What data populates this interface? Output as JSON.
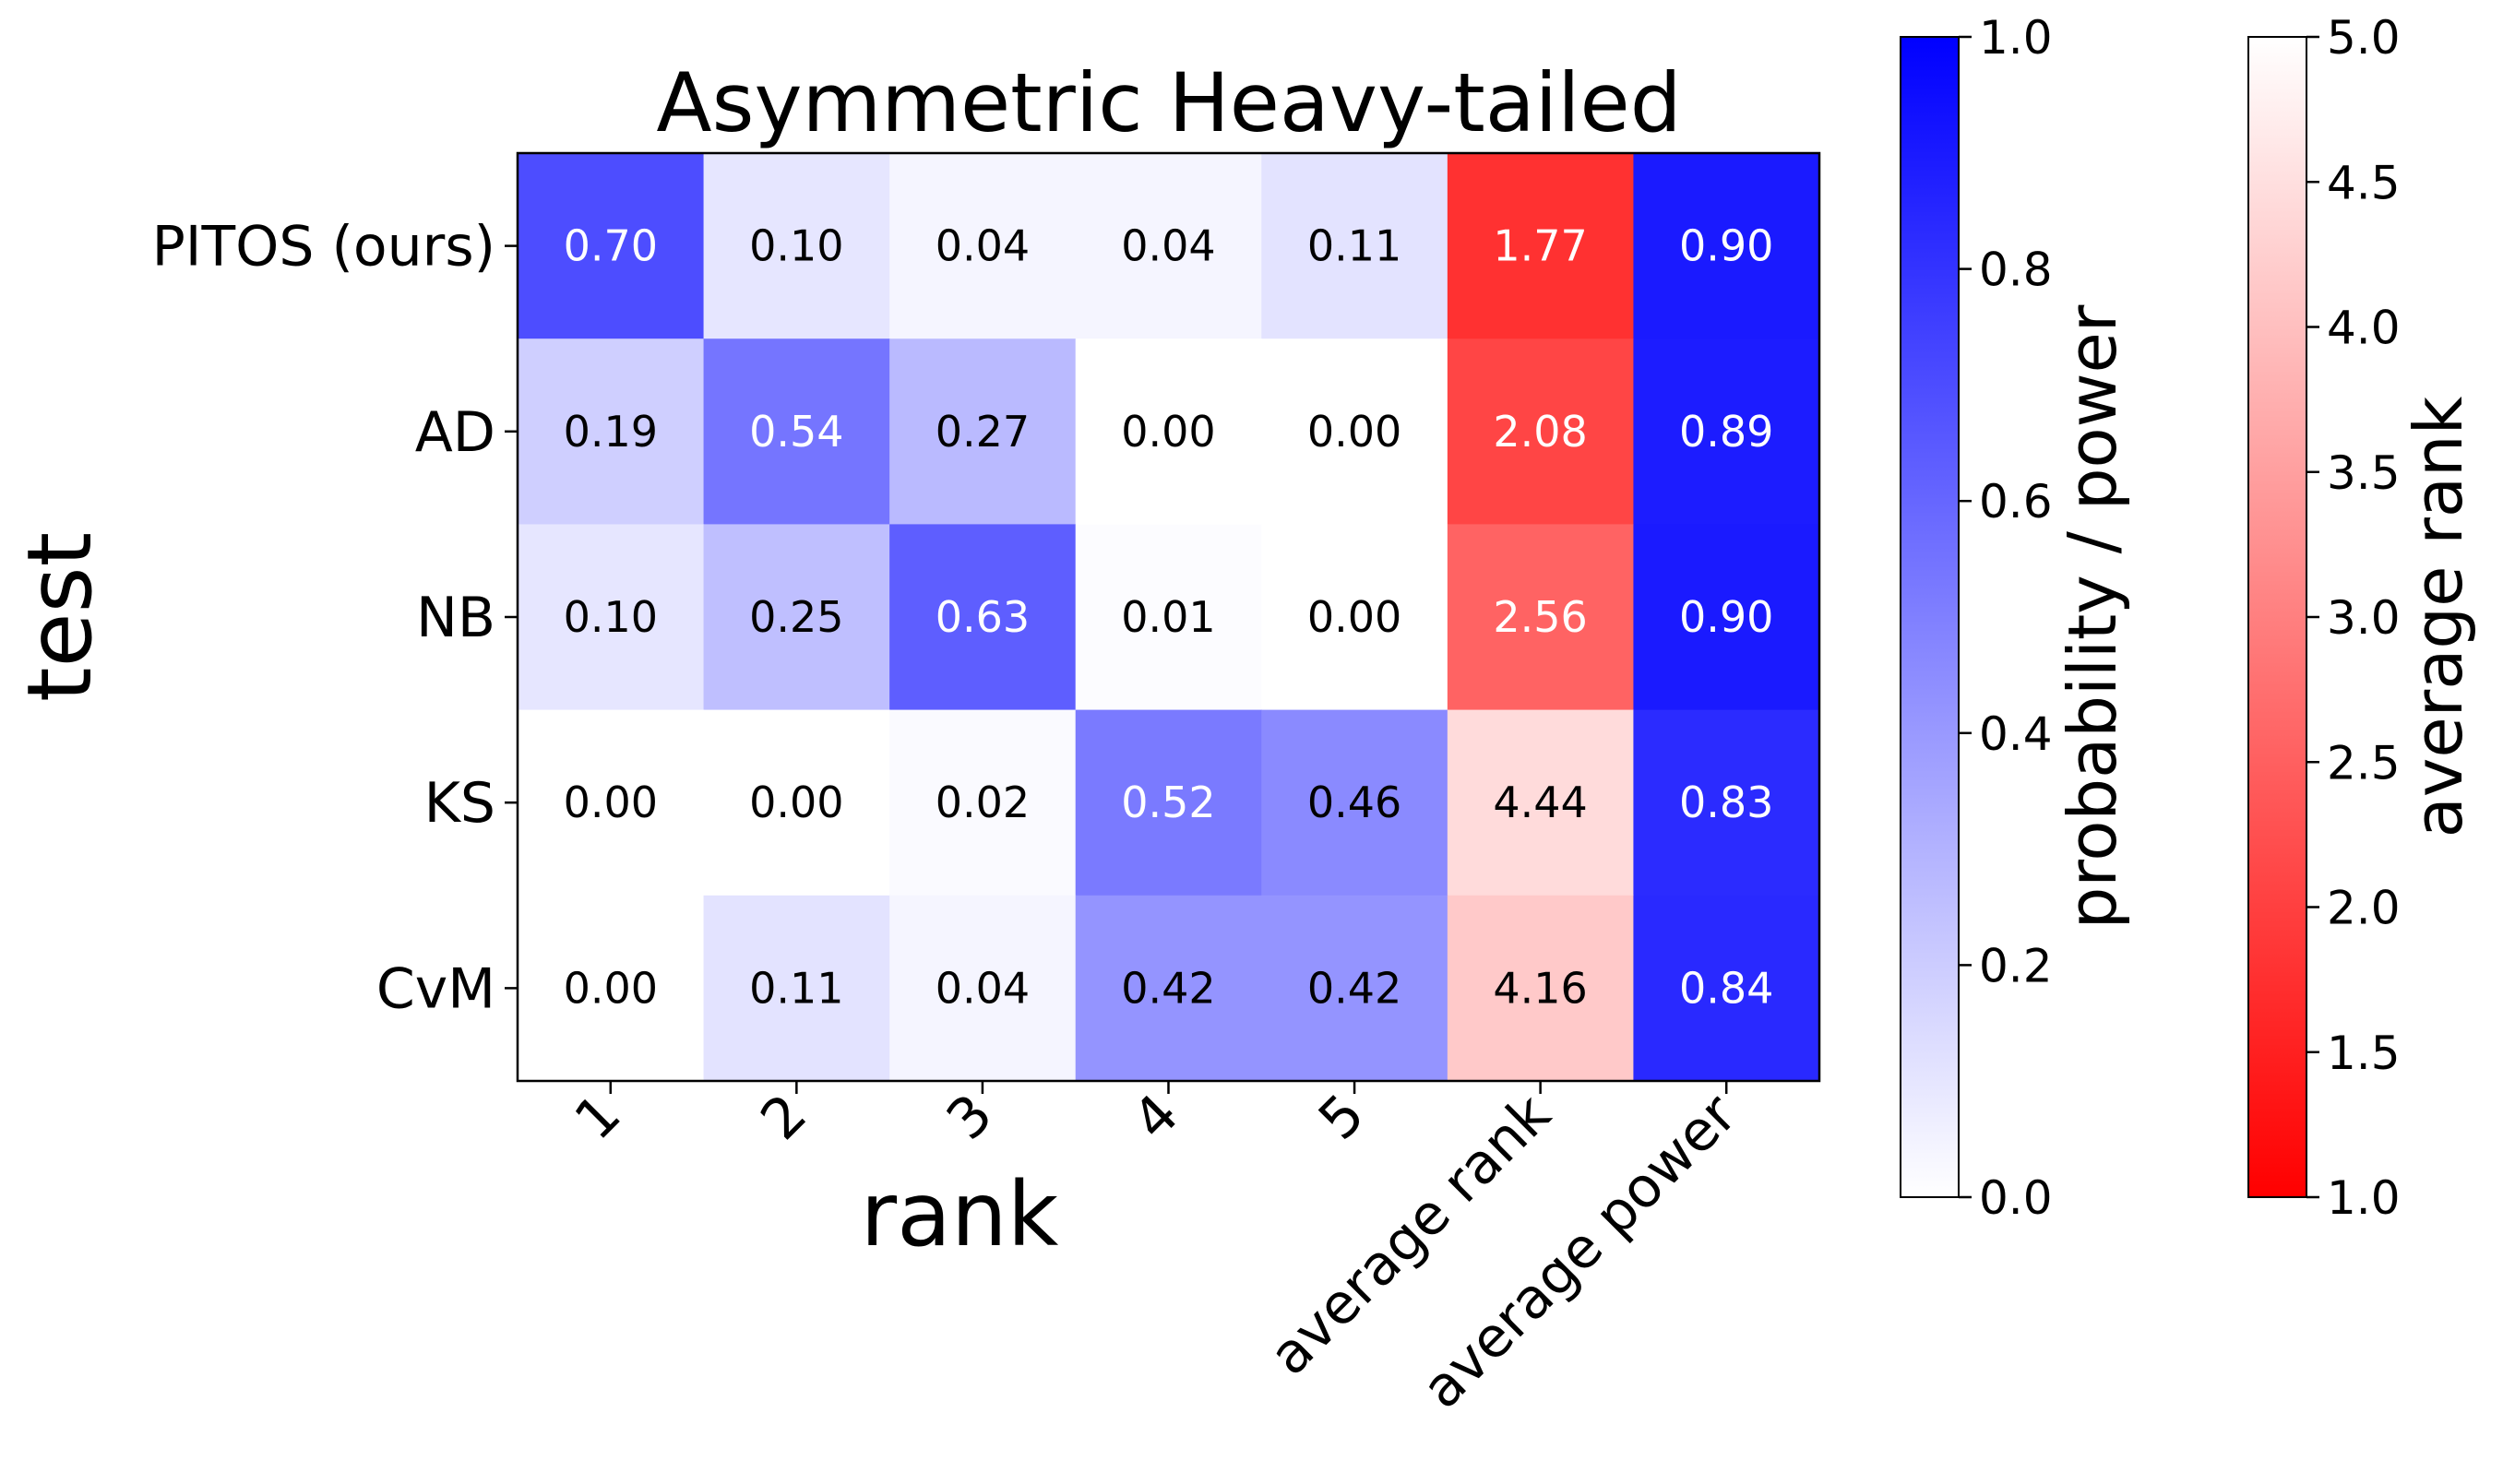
{
  "chart_data": {
    "type": "heatmap",
    "title": "Asymmetric Heavy-tailed",
    "xlabel": "rank",
    "ylabel": "test",
    "rows": [
      "PITOS (ours)",
      "AD",
      "NB",
      "KS",
      "CvM"
    ],
    "columns": [
      "1",
      "2",
      "3",
      "4",
      "5",
      "average rank",
      "average power"
    ],
    "rank_probabilities": [
      [
        0.7,
        0.1,
        0.04,
        0.04,
        0.11
      ],
      [
        0.19,
        0.54,
        0.27,
        0.0,
        0.0
      ],
      [
        0.1,
        0.25,
        0.63,
        0.01,
        0.0
      ],
      [
        0.0,
        0.0,
        0.02,
        0.52,
        0.46
      ],
      [
        0.0,
        0.11,
        0.04,
        0.42,
        0.42
      ]
    ],
    "average_rank": [
      1.77,
      2.08,
      2.56,
      4.44,
      4.16
    ],
    "average_power": [
      0.9,
      0.89,
      0.9,
      0.83,
      0.84
    ],
    "colorbars": [
      {
        "label": "probability / power",
        "min": 0.0,
        "max": 1.0,
        "ticks": [
          "0.0",
          "0.2",
          "0.4",
          "0.6",
          "0.8",
          "1.0"
        ],
        "color_low": "#ffffff",
        "color_high": "#0000ff"
      },
      {
        "label": "average rank",
        "min": 1.0,
        "max": 5.0,
        "ticks": [
          "1.0",
          "1.5",
          "2.0",
          "2.5",
          "3.0",
          "3.5",
          "4.0",
          "4.5",
          "5.0"
        ],
        "color_low": "#ff0000",
        "color_high": "#ffffff"
      }
    ],
    "value_format": "2 decimals"
  }
}
